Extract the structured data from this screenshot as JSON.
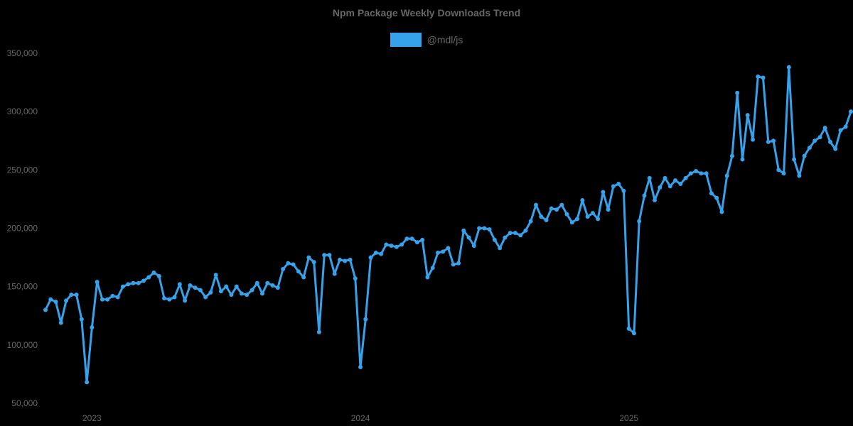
{
  "chart_data": {
    "type": "line",
    "title": "Npm Package Weekly Downloads Trend",
    "xlabel": "",
    "ylabel": "",
    "ylim": [
      50000,
      350000
    ],
    "yticks": [
      50000,
      100000,
      150000,
      200000,
      250000,
      300000,
      350000
    ],
    "ytick_labels": [
      "50,000",
      "100,000",
      "150,000",
      "200,000",
      "250,000",
      "300,000",
      "350,000"
    ],
    "xtick_labels": [
      "2023",
      "2024",
      "2025"
    ],
    "xtick_positions": [
      9,
      61,
      113
    ],
    "grid": false,
    "legend_position": "top",
    "series": [
      {
        "name": "@mdl/js",
        "color": "#36a2eb",
        "values": [
          130000,
          139000,
          137000,
          119000,
          138000,
          143000,
          143000,
          122000,
          68000,
          115000,
          154000,
          139000,
          139000,
          142000,
          141000,
          150000,
          152000,
          153000,
          153000,
          155000,
          158000,
          162000,
          159000,
          140000,
          139000,
          141000,
          152000,
          138000,
          151000,
          149000,
          147000,
          141000,
          145000,
          160000,
          146000,
          150000,
          143000,
          150000,
          144000,
          143000,
          147000,
          153000,
          144000,
          153000,
          151000,
          149000,
          165000,
          170000,
          169000,
          163000,
          158000,
          175000,
          171000,
          111000,
          177000,
          177000,
          161000,
          173000,
          172000,
          173000,
          157000,
          81000,
          122000,
          175000,
          179000,
          178000,
          186000,
          185000,
          184000,
          186000,
          191000,
          191000,
          188000,
          190000,
          158000,
          166000,
          179000,
          180000,
          183000,
          169000,
          170000,
          198000,
          192000,
          185000,
          200000,
          200000,
          199000,
          190000,
          183000,
          192000,
          196000,
          196000,
          194000,
          198000,
          206000,
          220000,
          210000,
          207000,
          217000,
          216000,
          220000,
          212000,
          205000,
          208000,
          224000,
          210000,
          213000,
          208000,
          231000,
          216000,
          236000,
          238000,
          232000,
          114000,
          110000,
          206000,
          228000,
          243000,
          224000,
          235000,
          243000,
          236000,
          241000,
          238000,
          243000,
          247000,
          249000,
          247000,
          247000,
          230000,
          226000,
          214000,
          245000,
          262000,
          316000,
          259000,
          297000,
          276000,
          330000,
          329000,
          274000,
          275000,
          250000,
          247000,
          338000,
          259000,
          245000,
          262000,
          269000,
          275000,
          278000,
          286000,
          274000,
          268000,
          284000,
          287000,
          300000
        ]
      }
    ]
  },
  "legend": {
    "items": [
      {
        "label": "@mdl/js",
        "color": "#36a2eb"
      }
    ]
  }
}
